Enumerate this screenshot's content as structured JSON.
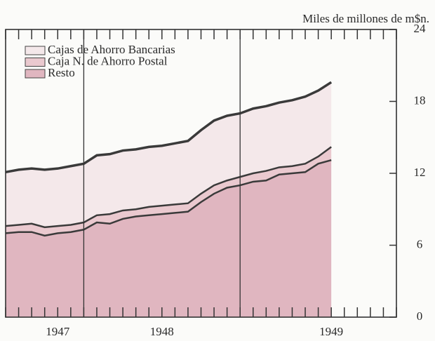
{
  "chart_data": {
    "type": "stacked_area",
    "y_axis_label": "Miles de millones de m$n.",
    "categories": [
      null,
      null,
      null,
      null,
      "1947",
      null,
      null,
      null,
      null,
      null,
      null,
      null,
      "1948",
      null,
      null,
      null,
      null,
      null,
      null,
      null,
      null,
      null,
      null,
      null,
      null,
      "1949",
      null,
      null,
      null,
      null,
      null
    ],
    "series": [
      {
        "name": "Cajas de Ahorro Bancarias",
        "color": "#f4e8ea",
        "values": [
          4.5,
          4.6,
          4.6,
          4.8,
          4.8,
          4.9,
          4.9,
          5.0,
          5.0,
          5.0,
          5.0,
          5.0,
          5.0,
          5.1,
          5.2,
          5.3,
          5.4,
          5.4,
          5.3,
          5.4,
          5.4,
          5.4,
          5.5,
          5.6,
          5.5,
          5.4,
          null,
          null,
          null,
          null,
          null
        ]
      },
      {
        "name": "Caja N. de Ahorro Postal",
        "color": "#eac9cf",
        "values": [
          0.6,
          0.6,
          0.7,
          0.7,
          0.6,
          0.6,
          0.6,
          0.6,
          0.8,
          0.7,
          0.6,
          0.7,
          0.7,
          0.7,
          0.7,
          0.7,
          0.7,
          0.6,
          0.7,
          0.7,
          0.8,
          0.6,
          0.6,
          0.7,
          0.6,
          1.1,
          null,
          null,
          null,
          null,
          null
        ]
      },
      {
        "name": "Resto",
        "color": "#e0b6c0",
        "values": [
          7.0,
          7.1,
          7.1,
          6.8,
          7.0,
          7.1,
          7.3,
          7.9,
          7.8,
          8.2,
          8.4,
          8.5,
          8.6,
          8.7,
          8.8,
          9.6,
          10.3,
          10.8,
          11.0,
          11.3,
          11.4,
          11.9,
          12.0,
          12.1,
          12.8,
          13.1,
          null,
          null,
          null,
          null,
          null
        ]
      }
    ],
    "ylim": [
      0,
      24
    ],
    "yticks": [
      0,
      6,
      12,
      18,
      24
    ]
  }
}
